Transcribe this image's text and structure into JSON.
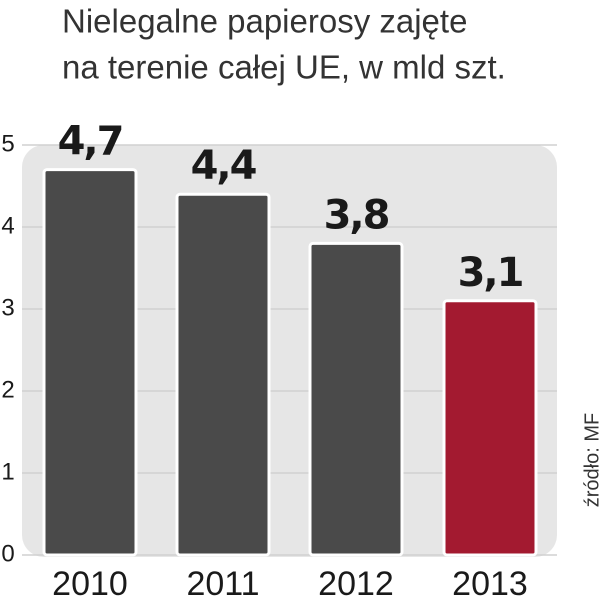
{
  "chart_data": {
    "type": "bar",
    "title": [
      "Nielegalne papierosy zajęte",
      "na terenie całej UE, w mld szt."
    ],
    "source": "źródło: MF",
    "categories": [
      "2010",
      "2011",
      "2012",
      "2013"
    ],
    "values": [
      4.7,
      4.4,
      3.8,
      3.1
    ],
    "value_labels": [
      "4,7",
      "4,4",
      "3,8",
      "3,1"
    ],
    "colors": [
      "#4a4a4a",
      "#4a4a4a",
      "#4a4a4a",
      "#a31a30"
    ],
    "ylim": [
      0,
      5
    ],
    "yticks": [
      0,
      1,
      2,
      3,
      4,
      5
    ],
    "grid": true
  }
}
